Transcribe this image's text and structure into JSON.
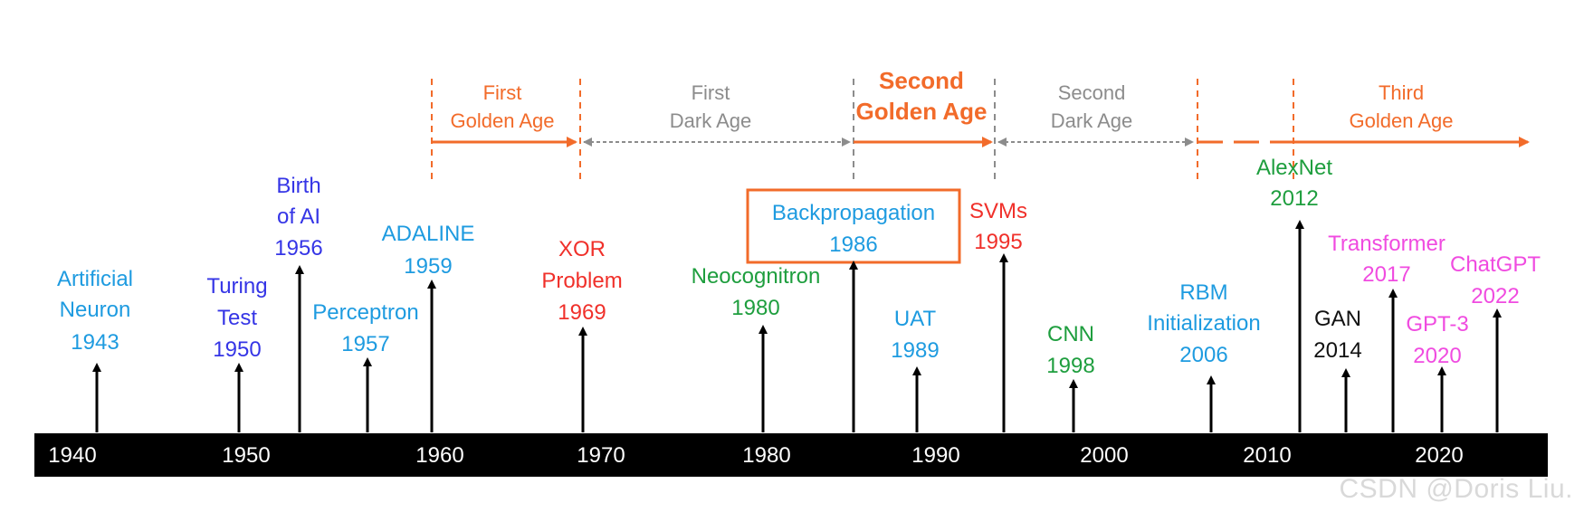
{
  "eras": [
    {
      "id": "first-golden",
      "lines": [
        "First",
        "Golden Age"
      ],
      "color": "#F26B2A",
      "style": "golden"
    },
    {
      "id": "first-dark",
      "lines": [
        "First",
        "Dark Age"
      ],
      "color": "#8C8C8C",
      "style": "dark"
    },
    {
      "id": "second-golden",
      "lines": [
        "Second",
        "Golden Age"
      ],
      "color": "#F26B2A",
      "style": "golden-big"
    },
    {
      "id": "second-dark",
      "lines": [
        "Second",
        "Dark Age"
      ],
      "color": "#8C8C8C",
      "style": "dark"
    },
    {
      "id": "third-golden",
      "lines": [
        "Third",
        "Golden Age"
      ],
      "color": "#F26B2A",
      "style": "golden"
    }
  ],
  "axis": {
    "years": [
      "1940",
      "1950",
      "1960",
      "1970",
      "1980",
      "1990",
      "2000",
      "2010",
      "2020"
    ],
    "bar_color": "#000000",
    "label_color": "#ffffff"
  },
  "events": [
    {
      "id": "artificial-neuron",
      "lines": [
        "Artificial",
        "Neuron",
        "1943"
      ],
      "color": "#1E9BE0"
    },
    {
      "id": "turing-test",
      "lines": [
        "Turing",
        "Test",
        "1950"
      ],
      "color": "#3535E6"
    },
    {
      "id": "birth-of-ai",
      "lines": [
        "Birth",
        "of AI",
        "1956"
      ],
      "color": "#3535E6"
    },
    {
      "id": "perceptron",
      "lines": [
        "Perceptron",
        "1957"
      ],
      "color": "#1E9BE0"
    },
    {
      "id": "adaline",
      "lines": [
        "ADALINE",
        "1959"
      ],
      "color": "#1E9BE0"
    },
    {
      "id": "xor-problem",
      "lines": [
        "XOR",
        "Problem",
        "1969"
      ],
      "color": "#F0302A"
    },
    {
      "id": "neocognitron",
      "lines": [
        "Neocognitron",
        "1980"
      ],
      "color": "#1E9E3E"
    },
    {
      "id": "backpropagation",
      "lines": [
        "Backpropagation",
        "1986"
      ],
      "color": "#1E9BE0",
      "boxed": true,
      "box_color": "#F26B2A"
    },
    {
      "id": "uat",
      "lines": [
        "UAT",
        "1989"
      ],
      "color": "#1E9BE0"
    },
    {
      "id": "svms",
      "lines": [
        "SVMs",
        "1995"
      ],
      "color": "#F0302A"
    },
    {
      "id": "cnn",
      "lines": [
        "CNN",
        "1998"
      ],
      "color": "#1E9E3E"
    },
    {
      "id": "rbm-initialization",
      "lines": [
        "RBM",
        "Initialization",
        "2006"
      ],
      "color": "#1E9BE0"
    },
    {
      "id": "alexnet",
      "lines": [
        "AlexNet",
        "2012"
      ],
      "color": "#1E9E3E"
    },
    {
      "id": "gan",
      "lines": [
        "GAN",
        "2014"
      ],
      "color": "#111111"
    },
    {
      "id": "transformer",
      "lines": [
        "Transformer",
        "2017"
      ],
      "color": "#F04BE0"
    },
    {
      "id": "gpt-3",
      "lines": [
        "GPT-3",
        "2020"
      ],
      "color": "#F04BE0"
    },
    {
      "id": "chatgpt",
      "lines": [
        "ChatGPT",
        "2022"
      ],
      "color": "#F04BE0"
    }
  ],
  "watermark": "CSDN @Doris Liu."
}
